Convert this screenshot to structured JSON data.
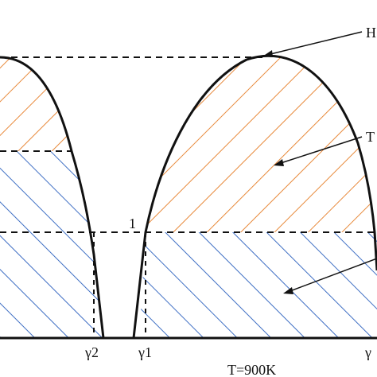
{
  "labels": {
    "top_right": "H",
    "mid_right": "T",
    "level_one": "1",
    "gamma_two": "γ2",
    "gamma_one": "γ1",
    "gamma_right": "γ",
    "temperature": "T=900K"
  },
  "colors": {
    "orange_hatch": "#e8893a",
    "blue_hatch": "#3f6fc4",
    "curve": "#111111",
    "background": "#ffffff"
  }
}
